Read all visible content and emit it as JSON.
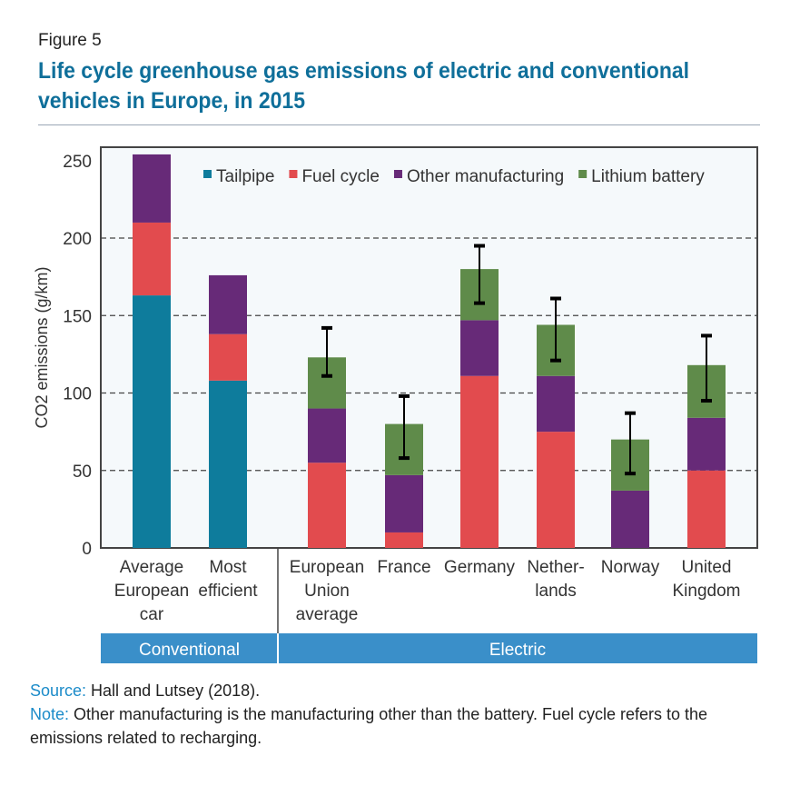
{
  "figure_label": "Figure 5",
  "title": "Life cycle greenhouse gas emissions of electric and conventional vehicles in Europe, in 2015",
  "source_label": "Source:",
  "source_text": " Hall and Lutsey (2018).",
  "note_label": "Note:",
  "note_text": " Other manufacturing is the manufacturing other than the battery. Fuel cycle refers to the emissions related to recharging.",
  "chart_data": {
    "type": "bar",
    "stacked": true,
    "ylabel": "CO2 emissions (g/km)",
    "ylim": [
      0,
      250
    ],
    "yticks": [
      0,
      50,
      100,
      150,
      200,
      250
    ],
    "grid": "horizontal dashed",
    "legend_position": "top",
    "categories": [
      [
        "Average",
        "European",
        "car"
      ],
      [
        "Most",
        "efficient"
      ],
      [
        "European",
        "Union",
        "average"
      ],
      [
        "France"
      ],
      [
        "Germany"
      ],
      [
        "Nether-",
        "lands"
      ],
      [
        "Norway"
      ],
      [
        "United",
        "Kingdom"
      ]
    ],
    "groups": [
      {
        "label": "Conventional",
        "count": 2
      },
      {
        "label": "Electric",
        "count": 6
      }
    ],
    "series": [
      {
        "name": "Tailpipe",
        "color": "#0e7c9c",
        "values": [
          163,
          108,
          0,
          0,
          0,
          0,
          0,
          0
        ]
      },
      {
        "name": "Fuel cycle",
        "color": "#e24b4e",
        "values": [
          47,
          30,
          55,
          10,
          111,
          75,
          0,
          50
        ]
      },
      {
        "name": "Other manufacturing",
        "color": "#672a78",
        "values": [
          44,
          38,
          35,
          37,
          36,
          36,
          37,
          34
        ]
      },
      {
        "name": "Lithium battery",
        "color": "#5f8b4a",
        "values": [
          0,
          0,
          33,
          33,
          33,
          33,
          33,
          34
        ]
      }
    ],
    "error_bars": [
      null,
      null,
      [
        111,
        142
      ],
      [
        58,
        98
      ],
      [
        158,
        195
      ],
      [
        121,
        161
      ],
      [
        48,
        87
      ],
      [
        95,
        137
      ]
    ],
    "group_band_color": "#3a8fc9"
  }
}
